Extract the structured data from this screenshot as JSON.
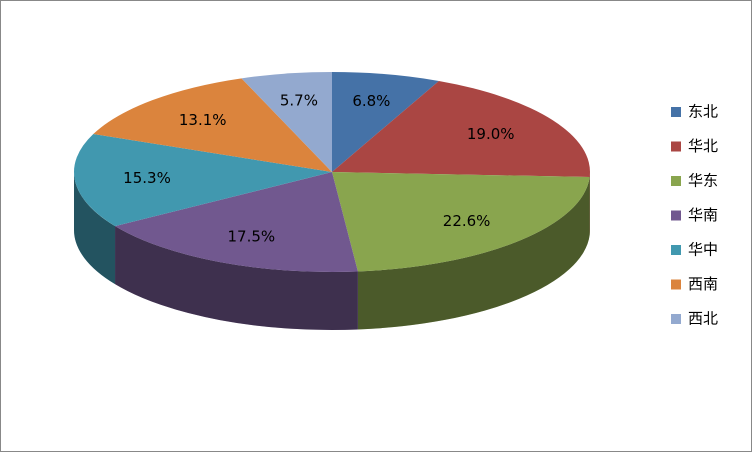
{
  "chart_data": {
    "type": "pie",
    "categories": [
      "东北",
      "华北",
      "华东",
      "华南",
      "华中",
      "西南",
      "西北"
    ],
    "values": [
      6.8,
      19.0,
      22.6,
      17.5,
      15.3,
      13.1,
      5.7
    ],
    "value_labels": [
      "6.8%",
      "19.0%",
      "22.6%",
      "17.5%",
      "15.3%",
      "13.1%",
      "5.7%"
    ],
    "colors": [
      "#4572a7",
      "#aa4643",
      "#89a54e",
      "#71588f",
      "#4198af",
      "#db843d",
      "#93a9cf"
    ],
    "legend": "right"
  }
}
